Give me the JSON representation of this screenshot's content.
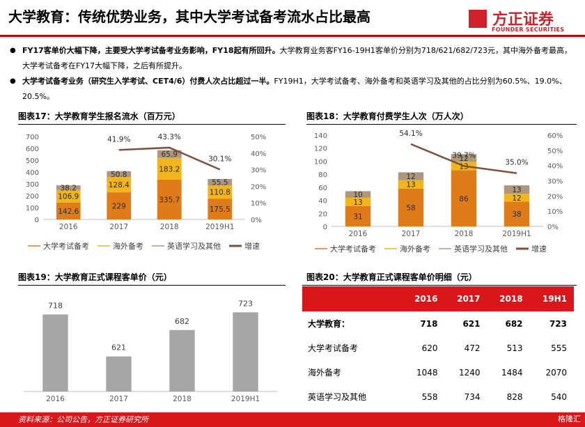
{
  "header": {
    "title": "大学教育：传统优势业务，其中大学考试备考流水占比最高",
    "logo_cn": "方正证券",
    "logo_en": "FOUNDER SECURITIES"
  },
  "bullets": [
    {
      "bold": "FY17客单价大幅下降，主要受大学考试备考业务影响，FY18起有所回升。",
      "text": "大学教育业务客FY16-19H1客单价分别为718/621/682/723元，其中海外备考最高，大学考试备考在FY17大幅下降，之后有所提升。"
    },
    {
      "bold": "大学考试备考业务（研究生入学考试、CET4/6）付费人次占比超过一半。",
      "text": "FY19H1，大学考试备考、海外备考和英语学习及其他的占比分别为60.5%、19.0%、20.5%。"
    }
  ],
  "colors": {
    "college_exam": "#e07b1a",
    "overseas": "#f2b51c",
    "english": "#ad987f",
    "growth_line": "#7f4f3b",
    "bar_gray": "#a6a6a6",
    "accent_red": "#d9171a"
  },
  "chart_data": [
    {
      "id": "fig17",
      "type": "bar",
      "title": "图表17：大学教育学生报名流水（百万元）",
      "categories": [
        "2016",
        "2017",
        "2018",
        "2019H1"
      ],
      "series": [
        {
          "name": "大学考试备考",
          "values": [
            142.6,
            229.0,
            335.7,
            175.5
          ]
        },
        {
          "name": "海外备考",
          "values": [
            106.9,
            128.4,
            183.2,
            110.8
          ]
        },
        {
          "name": "英语学习及其他",
          "values": [
            38.2,
            50.8,
            65.9,
            55.5
          ]
        }
      ],
      "line": {
        "name": "增速",
        "values": [
          null,
          0.419,
          0.433,
          0.301
        ],
        "labels": [
          "",
          "41.9%",
          "43.3%",
          "30.1%"
        ]
      },
      "ylim": [
        0,
        700
      ],
      "yticks": [
        0,
        100,
        200,
        300,
        400,
        500,
        600,
        700
      ],
      "y2lim": [
        0,
        0.5
      ],
      "y2ticks": [
        "0%",
        "10%",
        "20%",
        "30%",
        "40%",
        "50%"
      ],
      "legend": "bottom"
    },
    {
      "id": "fig18",
      "type": "bar",
      "title": "图表18：大学教育付费学生人次（万人次）",
      "categories": [
        "2016",
        "2017",
        "2018",
        "2019H1"
      ],
      "series": [
        {
          "name": "大学考试备考",
          "values": [
            31,
            58,
            86,
            38
          ]
        },
        {
          "name": "海外备考",
          "values": [
            13,
            13,
            13,
            12
          ]
        },
        {
          "name": "英语学习及其他",
          "values": [
            10,
            12,
            12,
            13
          ]
        }
      ],
      "line": {
        "name": "增速",
        "values": [
          null,
          0.541,
          0.397,
          0.35
        ],
        "labels": [
          "",
          "54.1%",
          "39.7%",
          "35.0%"
        ]
      },
      "ylim": [
        0,
        140
      ],
      "yticks": [
        0,
        20,
        40,
        60,
        80,
        100,
        120,
        140
      ],
      "y2lim": [
        0,
        0.6
      ],
      "y2ticks": [
        "0%",
        "10%",
        "20%",
        "30%",
        "40%",
        "50%",
        "60%"
      ],
      "legend": "bottom"
    },
    {
      "id": "fig19",
      "type": "bar",
      "title": "图表19：大学教育正式课程客单价（元）",
      "categories": [
        "2016",
        "2017",
        "2018",
        "2019H1"
      ],
      "values": [
        718,
        621,
        682,
        723
      ],
      "ylim": [
        540,
        730
      ]
    },
    {
      "id": "fig20",
      "type": "table",
      "title": "图表20：大学教育正式课程客单价明细（元）",
      "columns": [
        "",
        "2016",
        "2017",
        "2018",
        "19H1"
      ],
      "rows": [
        {
          "label": "大学教育：",
          "values": [
            "718",
            "621",
            "682",
            "723"
          ],
          "main": true
        },
        {
          "label": "大学考试备考",
          "values": [
            "620",
            "472",
            "513",
            "555"
          ],
          "main": false
        },
        {
          "label": "海外备考",
          "values": [
            "1048",
            "1240",
            "1484",
            "2070"
          ],
          "main": false
        },
        {
          "label": "英语学习及其他",
          "values": [
            "558",
            "734",
            "828",
            "540"
          ],
          "main": false
        }
      ]
    }
  ],
  "footer": {
    "source": "资料来源：公司公告，方正证券研究所",
    "watermark": "格隆汇"
  }
}
